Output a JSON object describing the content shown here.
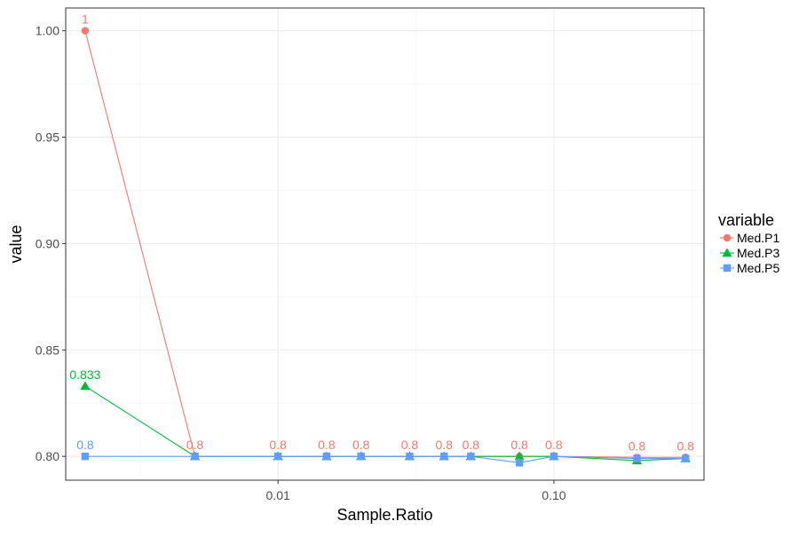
{
  "chart_data": {
    "type": "line",
    "title": "",
    "xlabel": "Sample.Ratio",
    "ylabel": "value",
    "x_scale": "log10",
    "xlim": [
      0.0017,
      0.35
    ],
    "ylim": [
      0.7888,
      1.0107
    ],
    "x_ticks": [
      {
        "value": 0.01,
        "label": "0.01"
      },
      {
        "value": 0.1,
        "label": "0.10"
      }
    ],
    "y_ticks": [
      {
        "value": 0.8,
        "label": "0.80"
      },
      {
        "value": 0.85,
        "label": "0.85"
      },
      {
        "value": 0.9,
        "label": "0.90"
      },
      {
        "value": 0.95,
        "label": "0.95"
      },
      {
        "value": 1.0,
        "label": "1.00"
      }
    ],
    "grid": true,
    "legend": {
      "title": "variable",
      "position": "right"
    },
    "series": [
      {
        "name": "Med.P1",
        "color": "#F8766D",
        "marker": "circle",
        "points": [
          {
            "x": 0.002,
            "y": 1.0,
            "label": "1"
          },
          {
            "x": 0.005,
            "y": 0.8,
            "label": "0.8"
          },
          {
            "x": 0.01,
            "y": 0.8,
            "label": "0.8"
          },
          {
            "x": 0.015,
            "y": 0.8,
            "label": "0.8"
          },
          {
            "x": 0.02,
            "y": 0.8,
            "label": "0.8"
          },
          {
            "x": 0.03,
            "y": 0.8,
            "label": "0.8"
          },
          {
            "x": 0.04,
            "y": 0.8,
            "label": "0.8"
          },
          {
            "x": 0.05,
            "y": 0.8,
            "label": "0.8"
          },
          {
            "x": 0.075,
            "y": 0.8,
            "label": "0.8"
          },
          {
            "x": 0.1,
            "y": 0.8,
            "label": "0.8"
          },
          {
            "x": 0.2,
            "y": 0.7995,
            "label": "0.8"
          },
          {
            "x": 0.3,
            "y": 0.7995,
            "label": "0.8"
          }
        ]
      },
      {
        "name": "Med.P3",
        "color": "#00BA38",
        "marker": "triangle",
        "points": [
          {
            "x": 0.002,
            "y": 0.833,
            "label": "0.833"
          },
          {
            "x": 0.005,
            "y": 0.8
          },
          {
            "x": 0.01,
            "y": 0.8
          },
          {
            "x": 0.015,
            "y": 0.8
          },
          {
            "x": 0.02,
            "y": 0.8
          },
          {
            "x": 0.03,
            "y": 0.8
          },
          {
            "x": 0.04,
            "y": 0.8
          },
          {
            "x": 0.05,
            "y": 0.8
          },
          {
            "x": 0.075,
            "y": 0.8
          },
          {
            "x": 0.1,
            "y": 0.8
          },
          {
            "x": 0.2,
            "y": 0.798
          },
          {
            "x": 0.3,
            "y": 0.799
          }
        ]
      },
      {
        "name": "Med.P5",
        "color": "#619CFF",
        "marker": "square",
        "points": [
          {
            "x": 0.002,
            "y": 0.8,
            "label": "0.8"
          },
          {
            "x": 0.005,
            "y": 0.8
          },
          {
            "x": 0.01,
            "y": 0.8
          },
          {
            "x": 0.015,
            "y": 0.8
          },
          {
            "x": 0.02,
            "y": 0.8
          },
          {
            "x": 0.03,
            "y": 0.8
          },
          {
            "x": 0.04,
            "y": 0.8
          },
          {
            "x": 0.05,
            "y": 0.8
          },
          {
            "x": 0.075,
            "y": 0.797
          },
          {
            "x": 0.1,
            "y": 0.8
          },
          {
            "x": 0.2,
            "y": 0.799
          },
          {
            "x": 0.3,
            "y": 0.799
          }
        ]
      }
    ]
  }
}
